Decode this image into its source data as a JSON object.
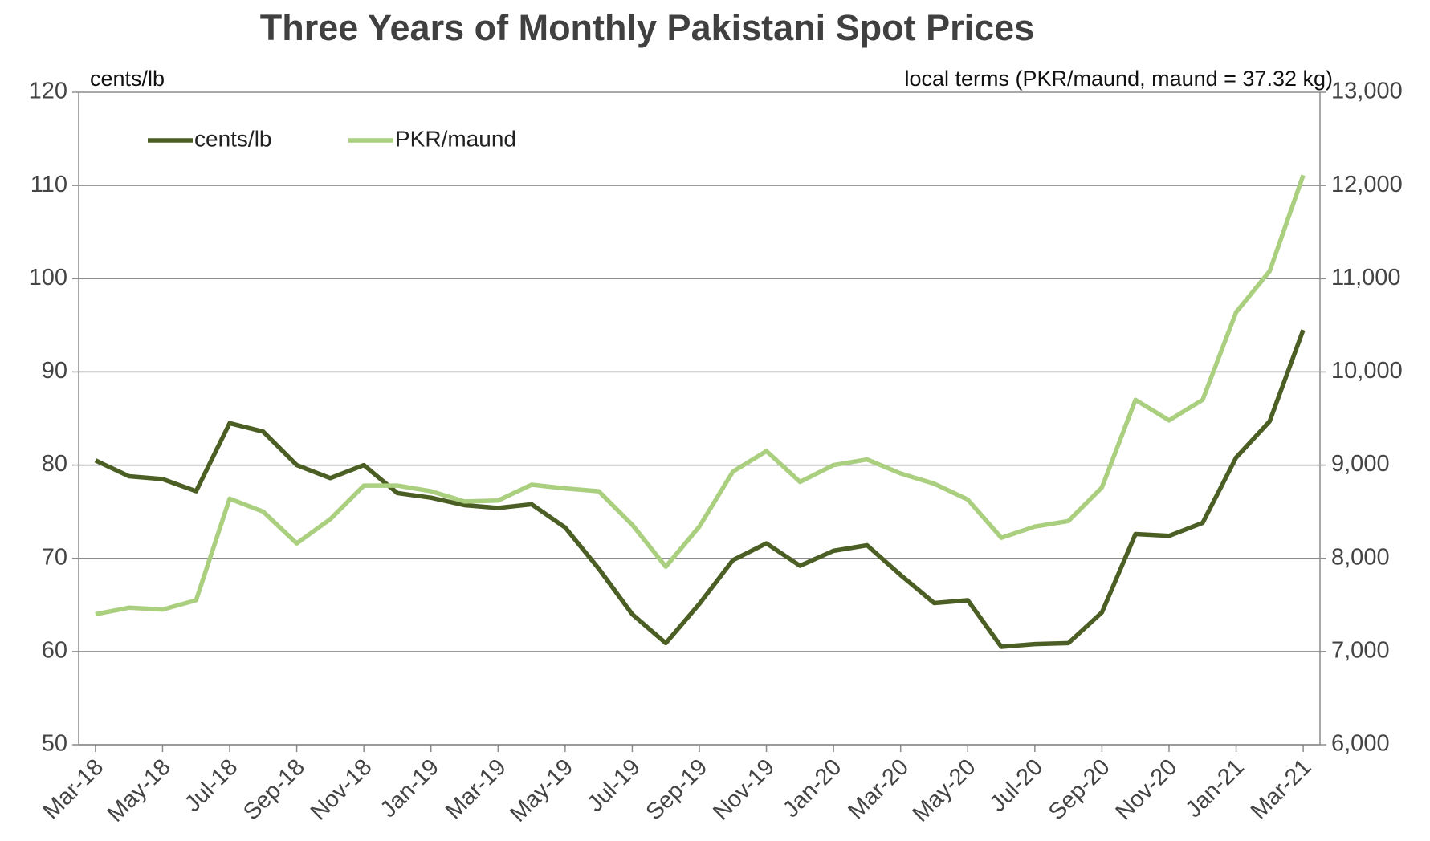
{
  "chart_data": {
    "type": "line",
    "title": "Three Years of Monthly Pakistani Spot Prices",
    "ylabel": "cents/lb",
    "y2label": "local terms (PKR/maund, maund = 37.32 kg)",
    "categories": [
      "Mar-18",
      null,
      "May-18",
      null,
      "Jul-18",
      null,
      "Sep-18",
      null,
      "Nov-18",
      null,
      "Jan-19",
      null,
      "Mar-19",
      null,
      "May-19",
      null,
      "Jul-19",
      null,
      "Sep-19",
      null,
      "Nov-19",
      null,
      "Jan-20",
      null,
      "Mar-20",
      null,
      "May-20",
      null,
      "Jul-20",
      null,
      "Sep-20",
      null,
      "Nov-20",
      null,
      "Jan-21",
      null,
      "Mar-21"
    ],
    "series": [
      {
        "name": "cents/lb",
        "color": "#4b5e23",
        "values": [
          80.5,
          78.8,
          78.5,
          77.2,
          84.5,
          83.6,
          80.0,
          78.6,
          80.0,
          77.0,
          76.5,
          75.7,
          75.4,
          75.8,
          73.3,
          68.9,
          64.0,
          60.9,
          65.1,
          69.8,
          71.6,
          69.2,
          70.8,
          71.4,
          68.2,
          65.2,
          65.5,
          60.5,
          60.8,
          60.9,
          64.2,
          72.6,
          72.4,
          73.8,
          80.8,
          84.7,
          94.5
        ]
      },
      {
        "name": "PKR/maund",
        "color": "#a9cf7f",
        "axis": "y2",
        "values": [
          7400,
          7470,
          7450,
          7550,
          8640,
          8500,
          8160,
          8420,
          8780,
          8780,
          8720,
          8610,
          8620,
          8790,
          8750,
          8720,
          8360,
          7910,
          8340,
          8930,
          9150,
          8820,
          9000,
          9060,
          8910,
          8800,
          8630,
          8220,
          8340,
          8400,
          8760,
          9700,
          9480,
          9700,
          10640,
          11080,
          12110
        ]
      }
    ],
    "ylim": [
      50,
      120
    ],
    "yticks": [
      50,
      60,
      70,
      80,
      90,
      100,
      110,
      120
    ],
    "y2lim": [
      6000,
      13000
    ],
    "y2ticks": [
      {
        "value": 6000,
        "label": "6,000"
      },
      {
        "value": 7000,
        "label": "7,000"
      },
      {
        "value": 8000,
        "label": "8,000"
      },
      {
        "value": 9000,
        "label": "9,000"
      },
      {
        "value": 10000,
        "label": "10,000"
      },
      {
        "value": 11000,
        "label": "11,000"
      },
      {
        "value": 12000,
        "label": "12,000"
      },
      {
        "value": 13000,
        "label": "13,000"
      }
    ],
    "grid": true,
    "legend": "upper left"
  }
}
